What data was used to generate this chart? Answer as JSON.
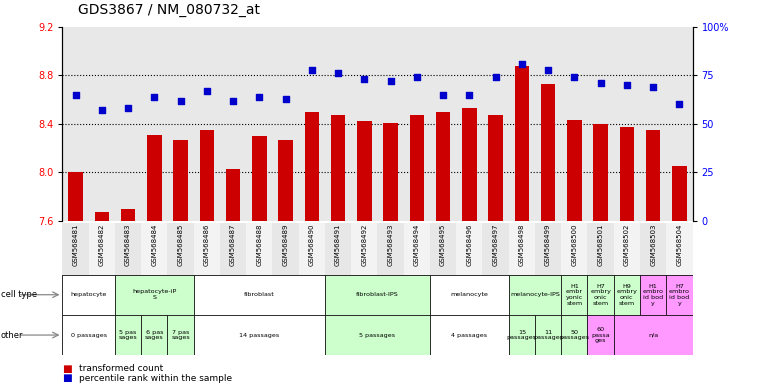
{
  "title": "GDS3867 / NM_080732_at",
  "samples": [
    "GSM568481",
    "GSM568482",
    "GSM568483",
    "GSM568484",
    "GSM568485",
    "GSM568486",
    "GSM568487",
    "GSM568488",
    "GSM568489",
    "GSM568490",
    "GSM568491",
    "GSM568492",
    "GSM568493",
    "GSM568494",
    "GSM568495",
    "GSM568496",
    "GSM568497",
    "GSM568498",
    "GSM568499",
    "GSM568500",
    "GSM568501",
    "GSM568502",
    "GSM568503",
    "GSM568504"
  ],
  "bar_values": [
    8.0,
    7.67,
    7.7,
    8.31,
    8.27,
    8.35,
    8.03,
    8.3,
    8.27,
    8.5,
    8.47,
    8.42,
    8.41,
    8.47,
    8.5,
    8.53,
    8.47,
    8.88,
    8.73,
    8.43,
    8.4,
    8.37,
    8.35,
    8.05
  ],
  "percentile_values": [
    65,
    57,
    58,
    64,
    62,
    67,
    62,
    64,
    63,
    78,
    76,
    73,
    72,
    74,
    65,
    65,
    74,
    81,
    78,
    74,
    71,
    70,
    69,
    60
  ],
  "bar_color": "#cc0000",
  "percentile_color": "#0000cc",
  "ylim_left": [
    7.6,
    9.2
  ],
  "ylim_right": [
    0,
    100
  ],
  "yticks_left": [
    7.6,
    8.0,
    8.4,
    8.8,
    9.2
  ],
  "yticks_right": [
    0,
    25,
    50,
    75,
    100
  ],
  "ytick_labels_right": [
    "0",
    "25",
    "50",
    "75",
    "100%"
  ],
  "grid_values": [
    8.0,
    8.4,
    8.8
  ],
  "title_fontsize": 10,
  "plot_bg_color": "#e8e8e8",
  "ct_groups": [
    {
      "label": "hepatocyte",
      "start": 0,
      "end": 1,
      "color": "#ffffff"
    },
    {
      "label": "hepatocyte-iP\nS",
      "start": 2,
      "end": 4,
      "color": "#ccffcc"
    },
    {
      "label": "fibroblast",
      "start": 5,
      "end": 9,
      "color": "#ffffff"
    },
    {
      "label": "fibroblast-IPS",
      "start": 10,
      "end": 13,
      "color": "#ccffcc"
    },
    {
      "label": "melanocyte",
      "start": 14,
      "end": 16,
      "color": "#ffffff"
    },
    {
      "label": "melanocyte-IPS",
      "start": 17,
      "end": 18,
      "color": "#ccffcc"
    },
    {
      "label": "H1\nembr\nyonic\nstem",
      "start": 19,
      "end": 19,
      "color": "#ccffcc"
    },
    {
      "label": "H7\nembry\nonic\nstem",
      "start": 20,
      "end": 20,
      "color": "#ccffcc"
    },
    {
      "label": "H9\nembry\nonic\nstem",
      "start": 21,
      "end": 21,
      "color": "#ccffcc"
    },
    {
      "label": "H1\nembro\nid bod\ny",
      "start": 22,
      "end": 22,
      "color": "#ff99ff"
    },
    {
      "label": "H7\nembro\nid bod\ny",
      "start": 23,
      "end": 23,
      "color": "#ff99ff"
    }
  ],
  "other_groups": [
    {
      "label": "0 passages",
      "start": 0,
      "end": 1,
      "color": "#ffffff"
    },
    {
      "label": "5 pas\nsages",
      "start": 2,
      "end": 2,
      "color": "#ccffcc"
    },
    {
      "label": "6 pas\nsages",
      "start": 3,
      "end": 3,
      "color": "#ccffcc"
    },
    {
      "label": "7 pas\nsages",
      "start": 4,
      "end": 4,
      "color": "#ccffcc"
    },
    {
      "label": "14 passages",
      "start": 5,
      "end": 9,
      "color": "#ffffff"
    },
    {
      "label": "5 passages",
      "start": 10,
      "end": 13,
      "color": "#ccffcc"
    },
    {
      "label": "4 passages",
      "start": 14,
      "end": 16,
      "color": "#ffffff"
    },
    {
      "label": "15\npassages",
      "start": 17,
      "end": 17,
      "color": "#ccffcc"
    },
    {
      "label": "11\npassages",
      "start": 18,
      "end": 18,
      "color": "#ccffcc"
    },
    {
      "label": "50\npassages",
      "start": 19,
      "end": 19,
      "color": "#ccffcc"
    },
    {
      "label": "60\npassa\nges",
      "start": 20,
      "end": 20,
      "color": "#ff99ff"
    },
    {
      "label": "n/a",
      "start": 21,
      "end": 23,
      "color": "#ff99ff"
    }
  ],
  "background_color": "#ffffff"
}
